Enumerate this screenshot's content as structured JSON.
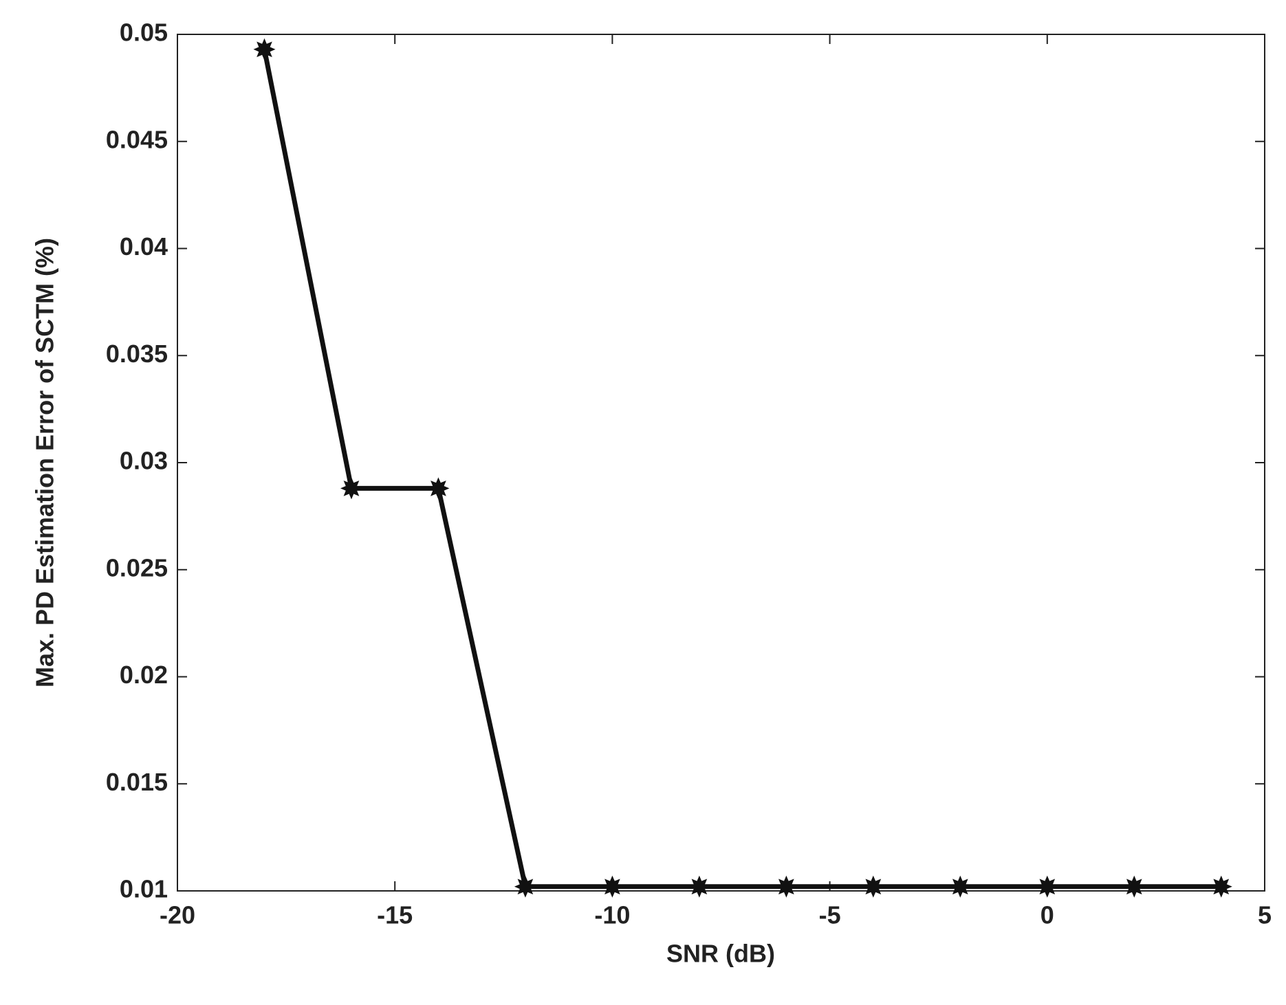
{
  "chart_data": {
    "type": "line",
    "xlabel": "SNR (dB)",
    "ylabel": "Max. PD Estimation Error of SCTM (%)",
    "x": [
      -18,
      -16,
      -14,
      -12,
      -10,
      -8,
      -6,
      -4,
      -2,
      0,
      2,
      4
    ],
    "series": [
      {
        "color": "#111111",
        "values": [
          0.0493,
          0.0288,
          0.0288,
          0.0102,
          0.0102,
          0.0102,
          0.0102,
          0.0102,
          0.0102,
          0.0102,
          0.0102,
          0.0102
        ]
      }
    ],
    "xlim": [
      -20,
      5
    ],
    "xticks": [
      -20,
      -15,
      -10,
      -5,
      0,
      5
    ],
    "ylim": [
      0.01,
      0.05
    ],
    "yticks": [
      0.01,
      0.015,
      0.02,
      0.025,
      0.03,
      0.035,
      0.04,
      0.045,
      0.05
    ],
    "grid": false
  }
}
